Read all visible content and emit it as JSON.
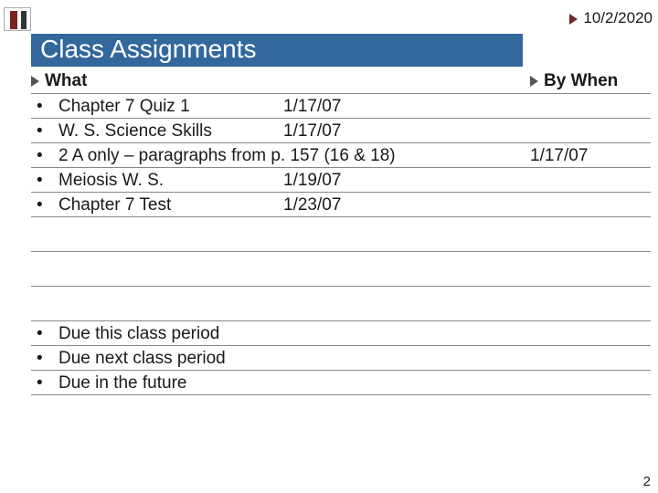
{
  "date_arrow_color": "#6d2a2a",
  "date": "10/2/2020",
  "title": "Class Assignments",
  "title_bg": "#33689c",
  "columns": {
    "what": "What",
    "when": "By When"
  },
  "rows": [
    {
      "a": "Chapter 7 Quiz 1",
      "b": "1/17/07",
      "when": ""
    },
    {
      "a": "W. S. Science Skills",
      "b": "1/17/07",
      "when": ""
    },
    {
      "a": "2 A only – paragraphs from p. 157 (16 & 18)",
      "b": "",
      "when": "1/17/07"
    },
    {
      "a": "Meiosis W. S.",
      "b": "1/19/07",
      "when": ""
    },
    {
      "a": "Chapter 7 Test",
      "b": "1/23/07",
      "when": ""
    }
  ],
  "empty_rows": 3,
  "legend": [
    "Due this class period",
    "Due next class period",
    "Due in the future"
  ],
  "page_number": "2",
  "rule_color": "#888888",
  "text_color": "#1a1a1a",
  "font_family": "Trebuchet MS",
  "body_fontsize_pt": 14,
  "head_fontsize_pt": 14,
  "title_fontsize_pt": 21
}
